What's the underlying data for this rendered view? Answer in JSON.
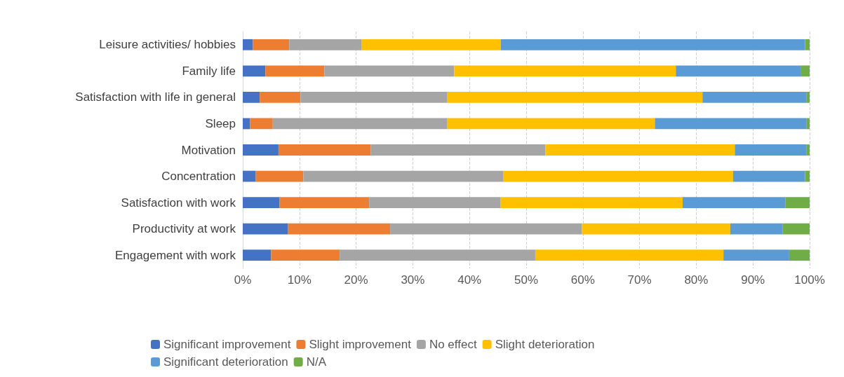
{
  "chart_data": {
    "type": "bar",
    "orientation": "horizontal",
    "stacked": true,
    "categories": [
      "Leisure activities/ hobbies",
      "Family life",
      "Satisfaction with life in general",
      "Sleep",
      "Motivation",
      "Concentration",
      "Satisfaction with work",
      "Productivity at work",
      "Engagement with work"
    ],
    "series": [
      {
        "name": "Significant improvement",
        "color": "#4472c4",
        "values": [
          1.8,
          4.0,
          3.0,
          1.3,
          6.3,
          2.3,
          6.5,
          8.0,
          5.0
        ]
      },
      {
        "name": "Slight improvement",
        "color": "#ed7d31",
        "values": [
          6.4,
          10.4,
          7.2,
          4.0,
          16.3,
          8.4,
          15.8,
          18.0,
          12.1
        ]
      },
      {
        "name": "No effect",
        "color": "#a5a5a5",
        "values": [
          12.8,
          22.9,
          25.9,
          30.8,
          30.8,
          35.3,
          23.2,
          33.8,
          34.5
        ]
      },
      {
        "name": "Slight deterioration",
        "color": "#ffc000",
        "values": [
          24.5,
          39.1,
          45.0,
          36.6,
          33.4,
          40.5,
          32.1,
          26.2,
          33.2
        ]
      },
      {
        "name": "Significant deterioration",
        "color": "#5b9bd5",
        "values": [
          53.7,
          22.0,
          18.3,
          26.7,
          12.6,
          12.7,
          18.1,
          9.2,
          11.6
        ]
      },
      {
        "name": "N/A",
        "color": "#70ad47",
        "values": [
          0.8,
          1.6,
          0.6,
          0.6,
          0.6,
          0.8,
          4.3,
          4.8,
          3.6
        ]
      }
    ],
    "xlim": [
      0,
      100
    ],
    "xticks": [
      {
        "value": 0,
        "label": "0%"
      },
      {
        "value": 10,
        "label": "10%"
      },
      {
        "value": 20,
        "label": "20%"
      },
      {
        "value": 30,
        "label": "30%"
      },
      {
        "value": 40,
        "label": "40%"
      },
      {
        "value": 50,
        "label": "50%"
      },
      {
        "value": 60,
        "label": "60%"
      },
      {
        "value": 70,
        "label": "70%"
      },
      {
        "value": 80,
        "label": "80%"
      },
      {
        "value": 90,
        "label": "90%"
      },
      {
        "value": 100,
        "label": "100%"
      }
    ],
    "grid": "x",
    "legend": "bottom"
  }
}
